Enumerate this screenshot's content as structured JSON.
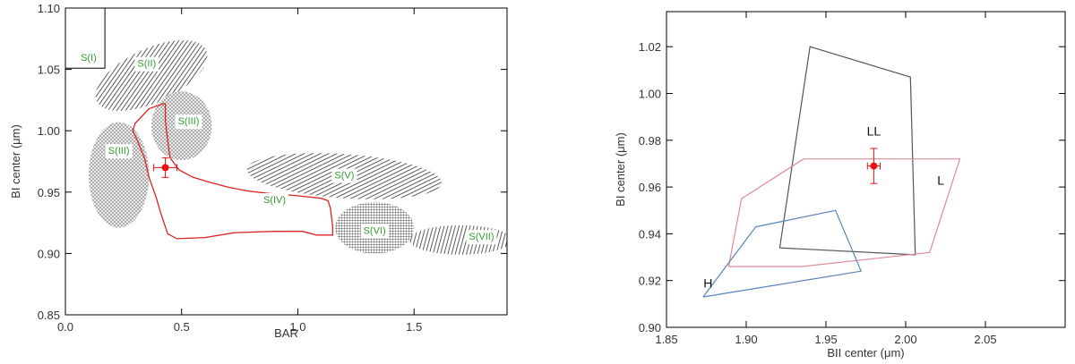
{
  "colors": {
    "frame": "#000000",
    "region_label": "#2f9e2f",
    "outline_red": "#dd2222",
    "marker": "#ee1111",
    "hatch_dark": "#333333",
    "hatch_light": "#9a9a9a",
    "poly_LL": "#555555",
    "poly_L": "#e08a96",
    "poly_H": "#5b84b8"
  },
  "chart_data": [
    {
      "type": "scatter",
      "title": "",
      "xlabel": "BAR",
      "ylabel": "BI center (μm)",
      "xlim": [
        0.0,
        1.9
      ],
      "ylim": [
        0.85,
        1.1
      ],
      "x_ticks": [
        0.0,
        0.5,
        1.0,
        1.5
      ],
      "x_tick_labels": [
        "0.0",
        "0.5",
        "1.0",
        "1.5"
      ],
      "y_ticks": [
        0.85,
        0.9,
        0.95,
        1.0,
        1.05,
        1.1
      ],
      "y_tick_labels": [
        "0.85",
        "0.90",
        "0.95",
        "1.00",
        "1.05",
        "1.10"
      ],
      "grid": false,
      "regions": [
        {
          "label": "S(I)",
          "shape": "box",
          "xmin": 0.0,
          "xmax": 0.17,
          "ymin": 1.051,
          "ymax": 1.1,
          "fill": "none",
          "label_at": [
            0.1,
            1.06
          ]
        },
        {
          "label": "S(II)",
          "shape": "ellipse",
          "cx": 0.37,
          "cy": 1.045,
          "rx": 0.26,
          "ry": 0.022,
          "angle": 25,
          "fill": "hatch-dark-diagonal",
          "label_at": [
            0.35,
            1.055
          ]
        },
        {
          "label": "S(III)",
          "shape": "ellipse",
          "cx": 0.5,
          "cy": 1.004,
          "rx": 0.13,
          "ry": 0.028,
          "angle": 0,
          "fill": "crosshatch-light",
          "label_at": [
            0.53,
            1.008
          ]
        },
        {
          "label": "S(III)",
          "shape": "ellipse",
          "cx": 0.23,
          "cy": 0.964,
          "rx": 0.13,
          "ry": 0.043,
          "angle": 0,
          "fill": "crosshatch-light",
          "label_at": [
            0.23,
            0.984
          ]
        },
        {
          "label": "S(V)",
          "shape": "ellipse",
          "cx": 1.2,
          "cy": 0.963,
          "rx": 0.42,
          "ry": 0.018,
          "angle": -4,
          "fill": "hatch-dark-diagonal",
          "label_at": [
            1.2,
            0.964
          ]
        },
        {
          "label": "S(VI)",
          "shape": "ellipse",
          "cx": 1.33,
          "cy": 0.921,
          "rx": 0.17,
          "ry": 0.021,
          "angle": 0,
          "fill": "grid-dark",
          "label_at": [
            1.33,
            0.919
          ]
        },
        {
          "label": "S(VII)",
          "shape": "ellipse",
          "cx": 1.7,
          "cy": 0.911,
          "rx": 0.22,
          "ry": 0.012,
          "angle": 0,
          "fill": "hatch-dark-vertical",
          "label_at": [
            1.79,
            0.914
          ]
        }
      ],
      "outline": {
        "label": "S(IV)",
        "label_at": [
          0.9,
          0.944
        ],
        "points": [
          [
            0.42,
            1.022
          ],
          [
            0.36,
            1.018
          ],
          [
            0.3,
            1.006
          ],
          [
            0.29,
            1.0
          ],
          [
            0.31,
            0.992
          ],
          [
            0.34,
            0.978
          ],
          [
            0.36,
            0.962
          ],
          [
            0.39,
            0.946
          ],
          [
            0.41,
            0.933
          ],
          [
            0.44,
            0.916
          ],
          [
            0.48,
            0.912
          ],
          [
            0.6,
            0.913
          ],
          [
            0.73,
            0.917
          ],
          [
            0.9,
            0.918
          ],
          [
            1.02,
            0.918
          ],
          [
            1.08,
            0.915
          ],
          [
            1.15,
            0.915
          ],
          [
            1.15,
            0.922
          ],
          [
            1.14,
            0.937
          ],
          [
            1.13,
            0.943
          ],
          [
            1.1,
            0.945
          ],
          [
            1.0,
            0.947
          ],
          [
            0.87,
            0.949
          ],
          [
            0.78,
            0.951
          ],
          [
            0.7,
            0.954
          ],
          [
            0.62,
            0.958
          ],
          [
            0.55,
            0.962
          ],
          [
            0.49,
            0.968
          ],
          [
            0.45,
            0.978
          ],
          [
            0.44,
            0.992
          ],
          [
            0.43,
            1.008
          ],
          [
            0.43,
            1.022
          ],
          [
            0.42,
            1.022
          ]
        ]
      },
      "point": {
        "x": 0.43,
        "y": 0.97,
        "xerr": 0.05,
        "yerr": 0.008
      }
    },
    {
      "type": "line",
      "title": "",
      "xlabel": "BII center (μm)",
      "ylabel": "BI center (μm)",
      "xlim": [
        1.85,
        2.1
      ],
      "ylim": [
        0.9,
        1.035
      ],
      "x_ticks": [
        1.85,
        1.9,
        1.95,
        2.0,
        2.05
      ],
      "x_tick_labels": [
        "1.85",
        "1.90",
        "1.95",
        "2.00",
        "2.05"
      ],
      "y_ticks": [
        0.9,
        0.92,
        0.94,
        0.96,
        0.98,
        1.0,
        1.02
      ],
      "y_tick_labels": [
        "0.90",
        "0.92",
        "0.94",
        "0.96",
        "0.98",
        "1.00",
        "1.02"
      ],
      "grid": false,
      "series": [
        {
          "name": "LL",
          "label_at": [
            1.98,
            0.984
          ],
          "points": [
            [
              1.921,
              0.934
            ],
            [
              1.94,
              1.02
            ],
            [
              2.003,
              1.007
            ],
            [
              2.006,
              0.931
            ],
            [
              1.921,
              0.934
            ]
          ]
        },
        {
          "name": "L",
          "label_at": [
            2.022,
            0.963
          ],
          "points": [
            [
              1.889,
              0.926
            ],
            [
              1.897,
              0.955
            ],
            [
              1.936,
              0.972
            ],
            [
              2.034,
              0.972
            ],
            [
              2.015,
              0.932
            ],
            [
              1.935,
              0.926
            ],
            [
              1.889,
              0.926
            ]
          ]
        },
        {
          "name": "H",
          "label_at": [
            1.876,
            0.919
          ],
          "points": [
            [
              1.873,
              0.913
            ],
            [
              1.906,
              0.943
            ],
            [
              1.956,
              0.95
            ],
            [
              1.972,
              0.924
            ],
            [
              1.873,
              0.913
            ]
          ]
        }
      ],
      "point": {
        "x": 1.98,
        "y": 0.969,
        "xerr": 0.004,
        "yerr": 0.0075
      }
    }
  ]
}
